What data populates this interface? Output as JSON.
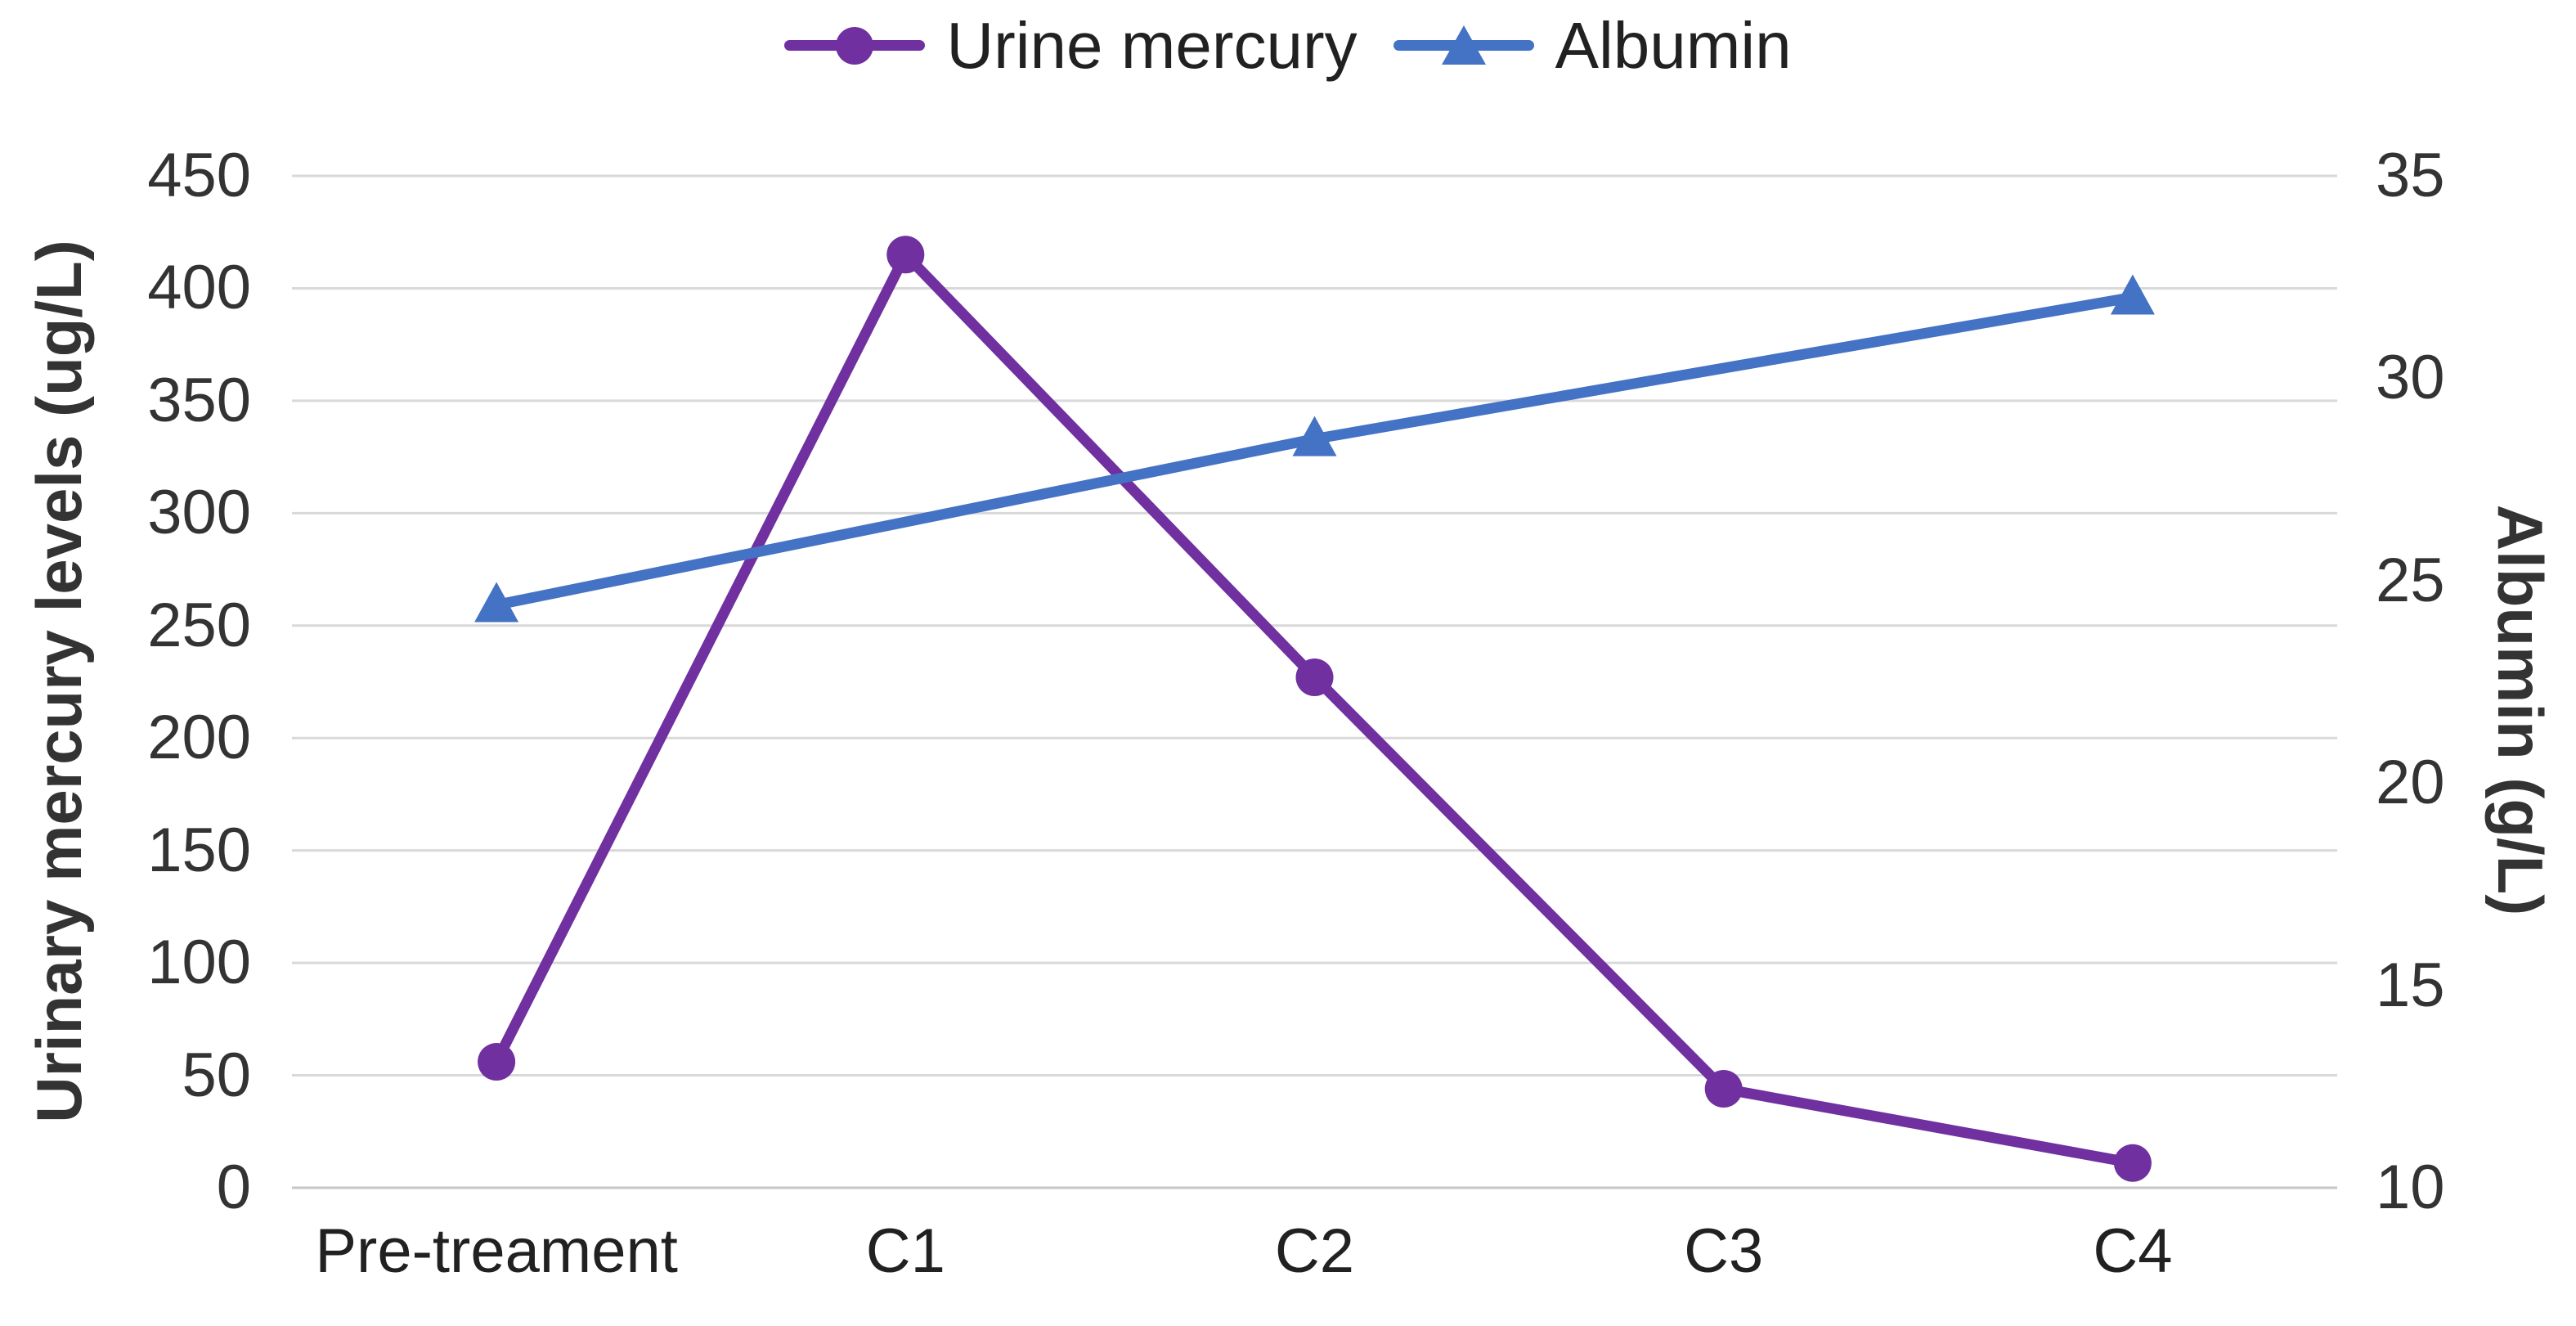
{
  "chart_data": {
    "type": "line",
    "title": "",
    "categories": [
      "Pre-treament",
      "C1",
      "C2",
      "C3",
      "C4"
    ],
    "left_axis": {
      "label": "Urinary mercury levels (ug/L)",
      "min": 0,
      "max": 450,
      "step": 50,
      "ticks": [
        0,
        50,
        100,
        150,
        200,
        250,
        300,
        350,
        400,
        450
      ]
    },
    "right_axis": {
      "label": "Albumin (g/L)",
      "min": 10,
      "max": 35,
      "step": 5,
      "ticks": [
        10,
        15,
        20,
        25,
        30,
        35
      ]
    },
    "series": [
      {
        "name": "Urine mercury",
        "axis": "left",
        "color": "#7030A0",
        "marker": "circle",
        "values": [
          56,
          415,
          227,
          44,
          11
        ]
      },
      {
        "name": "Albumin",
        "axis": "right",
        "color": "#4472C4",
        "marker": "triangle",
        "values": [
          24.4,
          null,
          28.5,
          null,
          32
        ]
      }
    ],
    "grid": true,
    "grid_color": "#D9D9D9",
    "baseline_color": "#C6C6C6",
    "text_color": "#333333",
    "legend_position": "top"
  }
}
